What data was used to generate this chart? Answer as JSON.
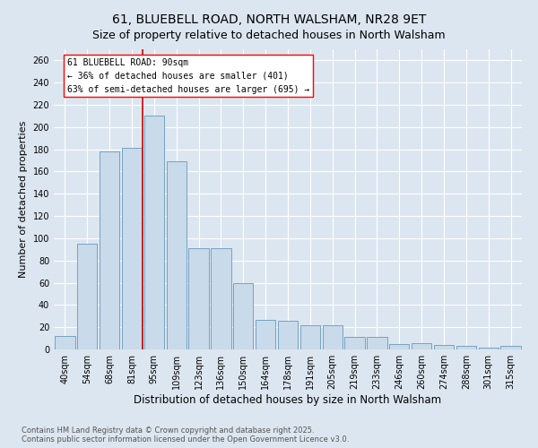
{
  "title1": "61, BLUEBELL ROAD, NORTH WALSHAM, NR28 9ET",
  "title2": "Size of property relative to detached houses in North Walsham",
  "xlabel": "Distribution of detached houses by size in North Walsham",
  "ylabel": "Number of detached properties",
  "categories": [
    "40sqm",
    "54sqm",
    "68sqm",
    "81sqm",
    "95sqm",
    "109sqm",
    "123sqm",
    "136sqm",
    "150sqm",
    "164sqm",
    "178sqm",
    "191sqm",
    "205sqm",
    "219sqm",
    "233sqm",
    "246sqm",
    "260sqm",
    "274sqm",
    "288sqm",
    "301sqm",
    "315sqm"
  ],
  "values": [
    12,
    95,
    178,
    181,
    210,
    169,
    91,
    91,
    60,
    27,
    26,
    22,
    22,
    11,
    11,
    5,
    6,
    4,
    3,
    2,
    3
  ],
  "bar_color": "#c9daea",
  "bar_edge_color": "#6699bb",
  "vline_index": 3.5,
  "vline_color": "#cc0000",
  "annotation_text": "61 BLUEBELL ROAD: 90sqm\n← 36% of detached houses are smaller (401)\n63% of semi-detached houses are larger (695) →",
  "background_color": "#dce6f0",
  "ylim_max": 270,
  "yticks": [
    0,
    20,
    40,
    60,
    80,
    100,
    120,
    140,
    160,
    180,
    200,
    220,
    240,
    260
  ],
  "title1_fontsize": 10,
  "title2_fontsize": 9,
  "xlabel_fontsize": 8.5,
  "ylabel_fontsize": 8,
  "tick_fontsize": 7,
  "annotation_fontsize": 7,
  "footer_fontsize": 6,
  "footer1": "Contains HM Land Registry data © Crown copyright and database right 2025.",
  "footer2": "Contains public sector information licensed under the Open Government Licence v3.0."
}
